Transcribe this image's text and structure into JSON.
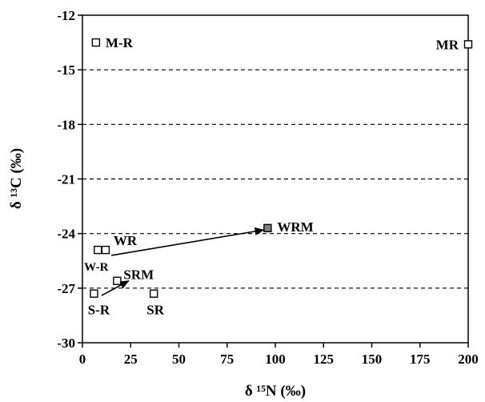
{
  "chart_data": {
    "type": "scatter",
    "xlabel": "δ ¹⁵N (‰)",
    "ylabel": "δ ¹³C (‰)",
    "xlim": [
      0,
      200
    ],
    "ylim": [
      -30,
      -12
    ],
    "xticks": [
      0,
      25,
      50,
      75,
      100,
      125,
      150,
      175,
      200
    ],
    "yticks": [
      -12,
      -15,
      -18,
      -21,
      -24,
      -27,
      -30
    ],
    "grid": "horizontal-dashed",
    "points": [
      {
        "label": "M-R",
        "x": 7,
        "y": -13.5,
        "fill": "open"
      },
      {
        "label": "MR",
        "x": 200,
        "y": -13.6,
        "fill": "open"
      },
      {
        "label": "W-R",
        "x": 8,
        "y": -24.9,
        "fill": "open"
      },
      {
        "label": "WR",
        "x": 12,
        "y": -24.9,
        "fill": "open"
      },
      {
        "label": "WRM",
        "x": 96,
        "y": -23.7,
        "fill": "gray"
      },
      {
        "label": "SRM",
        "x": 18,
        "y": -26.6,
        "fill": "open"
      },
      {
        "label": "S-R",
        "x": 6,
        "y": -27.3,
        "fill": "open"
      },
      {
        "label": "SR",
        "x": 37,
        "y": -27.3,
        "fill": "open"
      }
    ],
    "arrows": [
      {
        "from": "W-R",
        "to": "WRM",
        "from_x": 15,
        "from_y": -25.2,
        "to_x": 94,
        "to_y": -23.8
      },
      {
        "from": "S-R",
        "to": "SRM",
        "from_x": 10,
        "from_y": -27.4,
        "to_x": 24,
        "to_y": -26.6
      }
    ]
  }
}
